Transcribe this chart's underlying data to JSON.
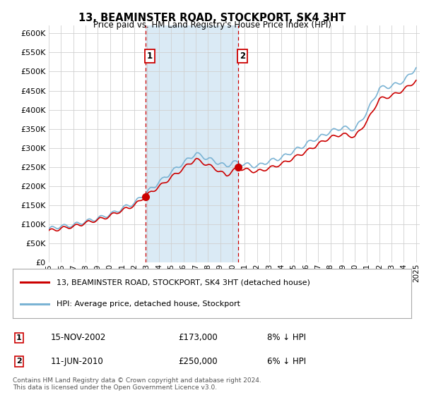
{
  "title": "13, BEAMINSTER ROAD, STOCKPORT, SK4 3HT",
  "subtitle": "Price paid vs. HM Land Registry's House Price Index (HPI)",
  "legend_line1": "13, BEAMINSTER ROAD, STOCKPORT, SK4 3HT (detached house)",
  "legend_line2": "HPI: Average price, detached house, Stockport",
  "sale1_label": "1",
  "sale1_date": "15-NOV-2002",
  "sale1_price": "£173,000",
  "sale1_pct": "8% ↓ HPI",
  "sale1_year": 2002.88,
  "sale1_value": 173000,
  "sale2_label": "2",
  "sale2_date": "11-JUN-2010",
  "sale2_price": "£250,000",
  "sale2_pct": "6% ↓ HPI",
  "sale2_year": 2010.44,
  "sale2_value": 250000,
  "ylim": [
    0,
    620000
  ],
  "yticks": [
    0,
    50000,
    100000,
    150000,
    200000,
    250000,
    300000,
    350000,
    400000,
    450000,
    500000,
    550000,
    600000
  ],
  "xlim_left": 1995,
  "xlim_right": 2025.3,
  "xticks": [
    1995,
    1996,
    1997,
    1998,
    1999,
    2000,
    2001,
    2002,
    2003,
    2004,
    2005,
    2006,
    2007,
    2008,
    2009,
    2010,
    2011,
    2012,
    2013,
    2014,
    2015,
    2016,
    2017,
    2018,
    2019,
    2020,
    2021,
    2022,
    2023,
    2024,
    2025
  ],
  "property_color": "#cc0000",
  "hpi_color": "#7ab3d4",
  "shade_color": "#daeaf5",
  "marker_box_color": "#cc0000",
  "footer_text": "Contains HM Land Registry data © Crown copyright and database right 2024.\nThis data is licensed under the Open Government Licence v3.0.",
  "background_color": "#ffffff",
  "grid_color": "#d0d0d0"
}
